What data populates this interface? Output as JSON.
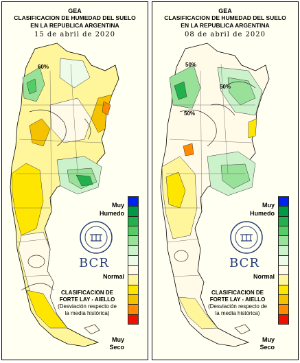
{
  "legend_colors": [
    "#0022ee",
    "#009944",
    "#22b14c",
    "#55cc66",
    "#99e099",
    "#ccf2cc",
    "#eefbe8",
    "#fffbe8",
    "#fff59a",
    "#ffe600",
    "#f5c200",
    "#ff8c00",
    "#ee1100"
  ],
  "map_colors": {
    "background": "#fffff2",
    "border": "#000000",
    "isoline": "#333333"
  },
  "panels": [
    {
      "title": "GEA",
      "subtitle1": "CLASIFICACION DE HUMEDAD DEL SUELO",
      "subtitle2": "EN LA REPUBLICA ARGENTINA",
      "date": "15 de abril de 2020",
      "legend_top1": "Muy",
      "legend_top2": "Humedo",
      "legend_mid": "Normal",
      "legend_bot1": "Muy",
      "legend_bot2": "Seco",
      "clasif_line1": "CLASIFICACION DE",
      "clasif_line2": "FORTE LAY - AIELLO",
      "clasif_line3": "(Desviación respecto de",
      "clasif_line4": "la media histórica)",
      "logo_text": "BCR",
      "isoline_labels": [
        "60%"
      ]
    },
    {
      "title": "GEA",
      "subtitle1": "CLASIFICACION DE HUMEDAD DEL SUELO",
      "subtitle2": "EN LA REPUBLICA ARGENTINA",
      "date": "08 de abril de 2020",
      "legend_top1": "Muy",
      "legend_top2": "Humedo",
      "legend_mid": "Normal",
      "legend_bot1": "Muy",
      "legend_bot2": "Seco",
      "clasif_line1": "CLASIFICACION DE",
      "clasif_line2": "FORTE LAY - AIELLO",
      "clasif_line3": "(Desviación respecto de",
      "clasif_line4": "la media histórica)",
      "logo_text": "BCR",
      "isoline_labels": [
        "50%",
        "50%",
        "50%"
      ]
    }
  ]
}
